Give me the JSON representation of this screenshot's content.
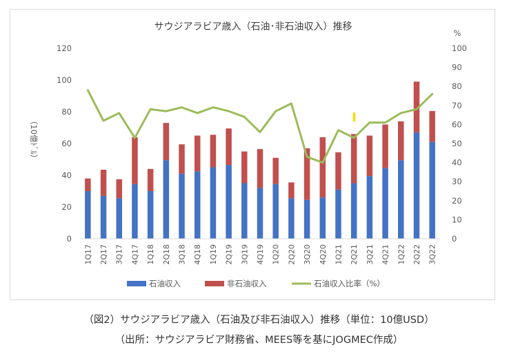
{
  "chart_data": {
    "type": "bar",
    "title": "サウジアラビア歳入（石油･非石油収入）推移",
    "ylabel": "（10億ﾄﾞﾙ）",
    "y2label": "%",
    "ylim": [
      0,
      120
    ],
    "y2lim": [
      0,
      100
    ],
    "yticks": [
      0,
      20,
      40,
      60,
      80,
      100,
      120
    ],
    "y2ticks": [
      0,
      10,
      20,
      30,
      40,
      50,
      60,
      70,
      80,
      90,
      100
    ],
    "stacked": true,
    "grid": false,
    "legend": "bottom",
    "categories": [
      "1Q17",
      "2Q17",
      "3Q17",
      "4Q17",
      "1Q18",
      "2Q18",
      "3Q18",
      "4Q18",
      "1Q19",
      "2Q19",
      "3Q19",
      "4Q19",
      "1Q20",
      "2Q20",
      "3Q20",
      "4Q20",
      "1Q21",
      "2Q21",
      "3Q21",
      "4Q21",
      "1Q22",
      "2Q22",
      "3Q22"
    ],
    "series": [
      {
        "name": "石油収入",
        "type": "bar",
        "axis": "left",
        "color": "#4472c4",
        "values": [
          30,
          27,
          25.5,
          34.5,
          30,
          49.5,
          41,
          42.5,
          45,
          46.5,
          35,
          32,
          34.5,
          25.5,
          24.5,
          26,
          31,
          35,
          39.5,
          44.5,
          49.5,
          67,
          61
        ]
      },
      {
        "name": "非石油収入",
        "type": "bar",
        "axis": "left",
        "color": "#c0504d",
        "values": [
          8,
          16.5,
          12,
          29.5,
          14,
          23.5,
          18.5,
          22.5,
          20.5,
          23,
          20,
          24.5,
          16.5,
          10,
          32.5,
          38,
          23.5,
          31,
          25.5,
          27.5,
          24.5,
          32,
          19.5
        ]
      },
      {
        "name": "石油収入比率（%）",
        "type": "line",
        "axis": "right",
        "color": "#9bbb59",
        "values": [
          78,
          62,
          66,
          53,
          68,
          67,
          69,
          66,
          69,
          67,
          64,
          56,
          67,
          71,
          43,
          40,
          57,
          53,
          61,
          61,
          66,
          68,
          76
        ]
      }
    ],
    "annotation_color": "#ffd700",
    "annotation_index": 17
  },
  "captions": {
    "line1": "（図2）サウジアラビア歳入（石油及び非石油収入）推移（単位：10億USD）",
    "line2": "（出所：サウジアラビア財務省、MEES等を基にJOGMEC作成）"
  }
}
